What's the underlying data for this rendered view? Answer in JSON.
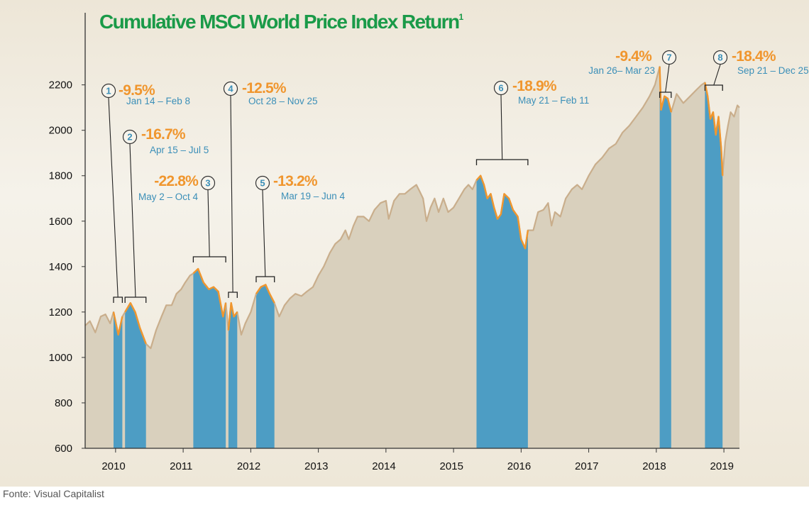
{
  "source": "Fonte: Visual Capitalist",
  "chart_data": {
    "type": "area",
    "title": "Cumulative MSCI World Price Index Return",
    "title_superscript": "1",
    "ylim": [
      600,
      2380
    ],
    "yticks": [
      600,
      800,
      1000,
      1200,
      1400,
      1600,
      1800,
      2000,
      2200
    ],
    "xlim": [
      2009.55,
      2019.23
    ],
    "xticks": [
      "2010",
      "2011",
      "2012",
      "2013",
      "2014",
      "2015",
      "2016",
      "2017",
      "2018",
      "2019"
    ],
    "grid": false,
    "colors": {
      "area": "#d9d0bd",
      "line": "#c9ae8c",
      "correction_fill": "#4d9dc4",
      "correction_line": "#f0962e",
      "title": "#1a9a48",
      "label": "#3b8fb8"
    },
    "series": [
      {
        "x": [
          2009.55,
          2009.62,
          2009.7,
          2009.78,
          2009.85,
          2009.92,
          2009.97,
          2010.04,
          2010.1,
          2010.14,
          2010.22,
          2010.29,
          2010.36,
          2010.45,
          2010.52,
          2010.6,
          2010.68,
          2010.75,
          2010.83,
          2010.9,
          2010.97,
          2011.03,
          2011.1,
          2011.15,
          2011.22,
          2011.3,
          2011.38,
          2011.45,
          2011.52,
          2011.59,
          2011.63,
          2011.67,
          2011.71,
          2011.75,
          2011.8,
          2011.86,
          2011.92,
          2012.0,
          2012.08,
          2012.15,
          2012.22,
          2012.28,
          2012.35,
          2012.42,
          2012.5,
          2012.58,
          2012.66,
          2012.75,
          2012.83,
          2012.92,
          2013.0,
          2013.08,
          2013.17,
          2013.25,
          2013.33,
          2013.4,
          2013.45,
          2013.52,
          2013.58,
          2013.67,
          2013.75,
          2013.83,
          2013.92,
          2014.0,
          2014.04,
          2014.12,
          2014.2,
          2014.28,
          2014.36,
          2014.45,
          2014.5,
          2014.55,
          2014.6,
          2014.66,
          2014.72,
          2014.78,
          2014.85,
          2014.92,
          2015.0,
          2015.08,
          2015.16,
          2015.22,
          2015.28,
          2015.34,
          2015.4,
          2015.45,
          2015.5,
          2015.55,
          2015.6,
          2015.65,
          2015.7,
          2015.75,
          2015.82,
          2015.88,
          2015.95,
          2016.0,
          2016.06,
          2016.1,
          2016.18,
          2016.25,
          2016.33,
          2016.4,
          2016.45,
          2016.5,
          2016.58,
          2016.66,
          2016.75,
          2016.83,
          2016.9,
          2017.0,
          2017.1,
          2017.2,
          2017.3,
          2017.4,
          2017.5,
          2017.6,
          2017.7,
          2017.8,
          2017.9,
          2017.98,
          2018.05,
          2018.07,
          2018.12,
          2018.17,
          2018.22,
          2018.3,
          2018.4,
          2018.5,
          2018.6,
          2018.67,
          2018.72,
          2018.76,
          2018.8,
          2018.84,
          2018.88,
          2018.92,
          2018.96,
          2018.98,
          2019.02,
          2019.06,
          2019.1,
          2019.15,
          2019.2,
          2019.23
        ],
        "values": [
          1140,
          1160,
          1110,
          1180,
          1190,
          1150,
          1200,
          1100,
          1180,
          1200,
          1240,
          1200,
          1130,
          1060,
          1040,
          1120,
          1180,
          1230,
          1230,
          1280,
          1300,
          1330,
          1360,
          1370,
          1390,
          1330,
          1300,
          1310,
          1290,
          1180,
          1240,
          1120,
          1240,
          1180,
          1200,
          1100,
          1150,
          1200,
          1280,
          1310,
          1320,
          1280,
          1240,
          1180,
          1230,
          1260,
          1280,
          1270,
          1290,
          1310,
          1360,
          1400,
          1460,
          1500,
          1520,
          1560,
          1520,
          1580,
          1620,
          1620,
          1600,
          1650,
          1680,
          1690,
          1610,
          1690,
          1720,
          1720,
          1740,
          1760,
          1730,
          1700,
          1600,
          1660,
          1700,
          1640,
          1700,
          1640,
          1660,
          1700,
          1740,
          1760,
          1740,
          1780,
          1800,
          1760,
          1700,
          1720,
          1660,
          1610,
          1630,
          1720,
          1700,
          1650,
          1620,
          1520,
          1480,
          1560,
          1560,
          1640,
          1650,
          1680,
          1580,
          1640,
          1620,
          1700,
          1740,
          1760,
          1740,
          1800,
          1850,
          1880,
          1920,
          1940,
          1990,
          2020,
          2060,
          2100,
          2150,
          2200,
          2280,
          2090,
          2150,
          2140,
          2080,
          2160,
          2120,
          2150,
          2180,
          2200,
          2210,
          2150,
          2050,
          2080,
          1980,
          2060,
          1920,
          1800,
          1950,
          2020,
          2080,
          2060,
          2110,
          2100
        ],
        "corrections": [
          {
            "id": "1",
            "pct": "-9.5%",
            "dates": "Jan 14 – Feb 8",
            "start": 2009.97,
            "end": 2010.1
          },
          {
            "id": "2",
            "pct": "-16.7%",
            "dates": "Apr 15 – Jul 5",
            "start": 2010.14,
            "end": 2010.45
          },
          {
            "id": "3",
            "pct": "-22.8%",
            "dates": "May 2 – Oct 4",
            "start": 2011.15,
            "end": 2011.63
          },
          {
            "id": "4",
            "pct": "-12.5%",
            "dates": "Oct 28 – Nov 25",
            "start": 2011.67,
            "end": 2011.8
          },
          {
            "id": "5",
            "pct": "-13.2%",
            "dates": "Mar 19 – Jun 4",
            "start": 2012.08,
            "end": 2012.35
          },
          {
            "id": "6",
            "pct": "-18.9%",
            "dates": "May 21 – Feb 11",
            "start": 2015.34,
            "end": 2016.1
          },
          {
            "id": "7",
            "pct": "-9.4%",
            "dates": "Jan 26– Mar 23",
            "start": 2018.05,
            "end": 2018.22
          },
          {
            "id": "8",
            "pct": "-18.4%",
            "dates": "Sep 21 – Dec 25",
            "start": 2018.72,
            "end": 2018.98
          }
        ]
      }
    ]
  }
}
